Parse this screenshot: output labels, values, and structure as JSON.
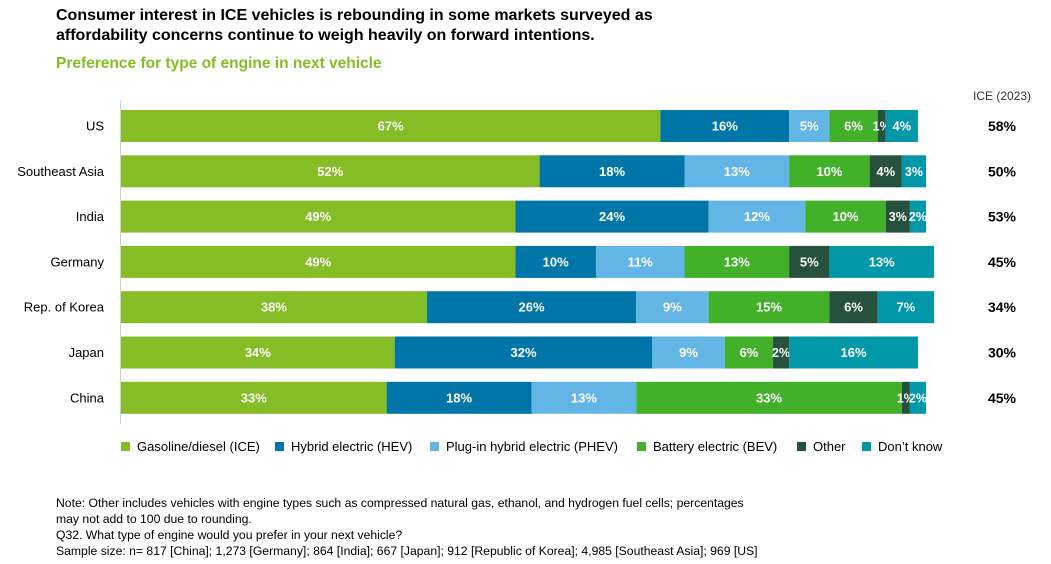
{
  "header": {
    "title_line1": "Consumer interest in ICE vehicles is rebounding in some markets surveyed as",
    "title_line2": "affordability concerns continue to weigh heavily on forward intentions.",
    "subtitle": "Preference for type of engine in next vehicle"
  },
  "colors": {
    "ice": "#86bc25",
    "hev": "#0076a8",
    "phev": "#62b5e5",
    "bev": "#43b02a",
    "other": "#26513c",
    "dont_know": "#0097a9",
    "subtitle": "#86bc25"
  },
  "chart_data": {
    "type": "bar",
    "orientation": "horizontal",
    "stacked": true,
    "categories": [
      "US",
      "Southeast Asia",
      "India",
      "Germany",
      "Rep. of Korea",
      "Japan",
      "China"
    ],
    "series": [
      {
        "name": "Gasoline/diesel (ICE)",
        "color": "#86bc25",
        "values": [
          67,
          52,
          49,
          49,
          38,
          34,
          33
        ]
      },
      {
        "name": "Hybrid electric (HEV)",
        "color": "#0076a8",
        "values": [
          16,
          18,
          24,
          10,
          26,
          32,
          18
        ]
      },
      {
        "name": "Plug-in hybrid electric (PHEV)",
        "color": "#62b5e5",
        "values": [
          5,
          13,
          12,
          11,
          9,
          9,
          13
        ]
      },
      {
        "name": "Battery electric (BEV)",
        "color": "#43b02a",
        "values": [
          6,
          10,
          10,
          13,
          15,
          6,
          33
        ]
      },
      {
        "name": "Other",
        "color": "#26513c",
        "values": [
          1,
          4,
          3,
          5,
          6,
          2,
          1
        ]
      },
      {
        "name": "Don’t know",
        "color": "#0097a9",
        "values": [
          4,
          3,
          2,
          13,
          7,
          16,
          2
        ]
      }
    ],
    "ice_2023_label": "ICE (2023)",
    "ice_2023": [
      "58%",
      "50%",
      "53%",
      "45%",
      "34%",
      "30%",
      "45%"
    ],
    "legend_position": "bottom",
    "xlim": [
      0,
      100
    ],
    "grid": false
  },
  "notes": [
    "Note: Other includes vehicles with engine types such as compressed natural gas, ethanol, and hydrogen fuel cells; percentages",
    "may not add to 100 due to rounding.",
    "Q32. What type of engine would you prefer in your next vehicle?",
    "Sample size: n= 817 [China]; 1,273 [Germany]; 864 [India]; 667 [Japan]; 912 [Republic of Korea]; 4,985 [Southeast Asia]; 969 [US]"
  ]
}
